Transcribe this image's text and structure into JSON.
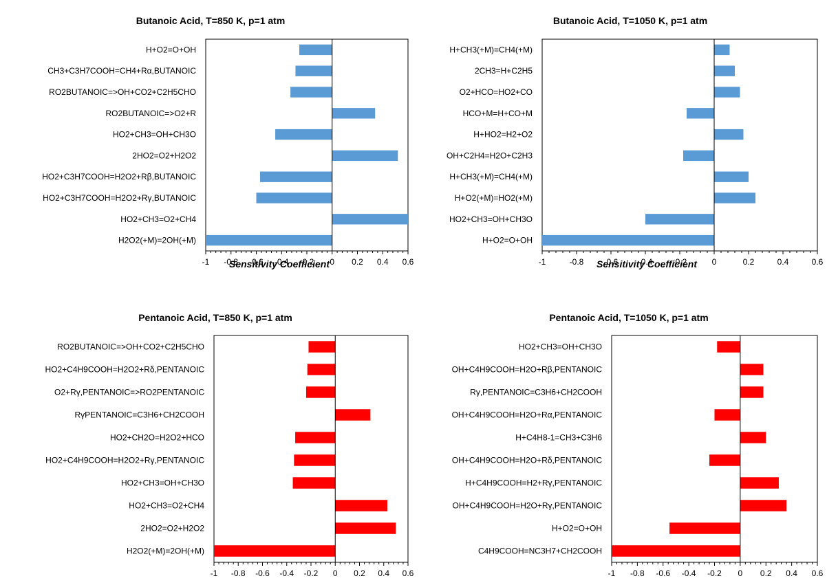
{
  "chart_data": [
    {
      "type": "bar",
      "orientation": "horizontal",
      "title": "Butanoic Acid, T=850 K, p=1 atm",
      "xlabel": "Sensitivity Coefficient",
      "xlim": [
        -1,
        0.6
      ],
      "xticks": [
        "-1",
        "-0.8",
        "-0.6",
        "-0.4",
        "-0.2",
        "0",
        "0.2",
        "0.4",
        "0.6"
      ],
      "color": "#5b9bd5",
      "categories": [
        "H+O2=O+OH",
        "CH3+C3H7COOH=CH4+Rα,BUTANOIC",
        "RO2BUTANOIC=>OH+CO2+C2H5CHO",
        "RO2BUTANOIC=>O2+R",
        "HO2+CH3=OH+CH3O",
        "2HO2=O2+H2O2",
        "HO2+C3H7COOH=H2O2+Rβ,BUTANOIC",
        "HO2+C3H7COOH=H2O2+Rγ,BUTANOIC",
        "HO2+CH3=O2+CH4",
        "H2O2(+M)=2OH(+M)"
      ],
      "values": [
        -0.26,
        -0.29,
        -0.33,
        0.34,
        -0.45,
        0.52,
        -0.57,
        -0.6,
        0.6,
        -1.0
      ]
    },
    {
      "type": "bar",
      "orientation": "horizontal",
      "title": "Butanoic Acid, T=1050 K, p=1 atm",
      "xlabel": "Sensitivity Coefficient",
      "xlim": [
        -1,
        0.6
      ],
      "xticks": [
        "-1",
        "-0.8",
        "-0.6",
        "-0.4",
        "-0.2",
        "0",
        "0.2",
        "0.4",
        "0.6"
      ],
      "color": "#5b9bd5",
      "categories": [
        "H+CH3(+M)=CH4(+M)",
        "2CH3=H+C2H5",
        "O2+HCO=HO2+CO",
        "HCO+M=H+CO+M",
        "H+HO2=H2+O2",
        "OH+C2H4=H2O+C2H3",
        "H+CH3(+M)=CH4(+M)",
        "H+O2(+M)=HO2(+M)",
        "HO2+CH3=OH+CH3O",
        "H+O2=O+OH"
      ],
      "values": [
        0.09,
        0.12,
        0.15,
        -0.16,
        0.17,
        -0.18,
        0.2,
        0.24,
        -0.4,
        -1.0
      ]
    },
    {
      "type": "bar",
      "orientation": "horizontal",
      "title": "Pentanoic Acid, T=850 K, p=1 atm",
      "xlabel": "",
      "xlim": [
        -1,
        0.6
      ],
      "xticks": [
        "-1",
        "-0.8",
        "-0.6",
        "-0.4",
        "-0.2",
        "0",
        "0.2",
        "0.4",
        "0.6"
      ],
      "color": "#ff0000",
      "categories": [
        "RO2BUTANOIC=>OH+CO2+C2H5CHO",
        "HO2+C4H9COOH=H2O2+Rδ,PENTANOIC",
        "O2+Rγ,PENTANOIC=>RO2PENTANOIC",
        "RγPENTANOIC=C3H6+CH2COOH",
        "HO2+CH2O=H2O2+HCO",
        "HO2+C4H9COOH=H2O2+Rγ,PENTANOIC",
        "HO2+CH3=OH+CH3O",
        "HO2+CH3=O2+CH4",
        "2HO2=O2+H2O2",
        "H2O2(+M)=2OH(+M)"
      ],
      "values": [
        -0.22,
        -0.23,
        -0.24,
        0.29,
        -0.33,
        -0.34,
        -0.35,
        0.43,
        0.5,
        -1.0
      ]
    },
    {
      "type": "bar",
      "orientation": "horizontal",
      "title": "Pentanoic Acid, T=1050 K, p=1 atm",
      "xlabel": "",
      "xlim": [
        -1,
        0.6
      ],
      "xticks": [
        "-1",
        "-0.8",
        "-0.6",
        "-0.4",
        "-0.2",
        "0",
        "0.2",
        "0.4",
        "0.6"
      ],
      "color": "#ff0000",
      "categories": [
        "HO2+CH3=OH+CH3O",
        "OH+C4H9COOH=H2O+Rβ,PENTANOIC",
        "Rγ,PENTANOIC=C3H6+CH2COOH",
        "OH+C4H9COOH=H2O+Rα,PENTANOIC",
        "H+C4H8-1=CH3+C3H6",
        "OH+C4H9COOH=H2O+Rδ,PENTANOIC",
        "H+C4H9COOH=H2+Rγ,PENTANOIC",
        "OH+C4H9COOH=H2O+Rγ,PENTANOIC",
        "H+O2=O+OH",
        "C4H9COOH=NC3H7+CH2COOH"
      ],
      "values": [
        -0.18,
        0.18,
        0.18,
        -0.2,
        0.2,
        -0.24,
        0.3,
        0.36,
        -0.55,
        -1.0
      ]
    }
  ]
}
